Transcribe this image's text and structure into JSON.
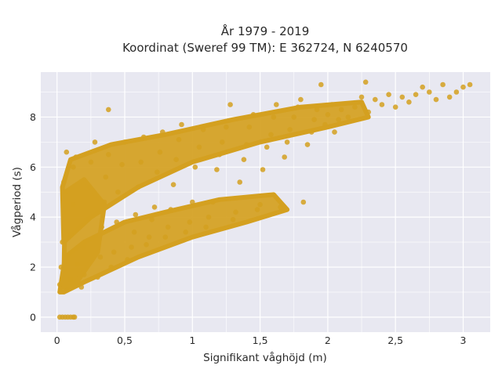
{
  "chart_data": {
    "type": "scatter",
    "title_lines": [
      "År 1979 - 2019",
      "Koordinat (Sweref 99 TM): E 362724, N 6240570"
    ],
    "xlabel": "Signifikant våghöjd (m)",
    "ylabel": "Vågperiod (s)",
    "xlim": [
      -0.12,
      3.2
    ],
    "ylim": [
      -0.6,
      9.8
    ],
    "x_ticks": [
      {
        "value": 0,
        "label": "0"
      },
      {
        "value": 0.5,
        "label": "0,5"
      },
      {
        "value": 1,
        "label": "1"
      },
      {
        "value": 1.5,
        "label": "1,5"
      },
      {
        "value": 2,
        "label": "2"
      },
      {
        "value": 2.5,
        "label": "2,5"
      },
      {
        "value": 3,
        "label": "3"
      }
    ],
    "y_ticks": [
      {
        "value": 0,
        "label": "0"
      },
      {
        "value": 2,
        "label": "2"
      },
      {
        "value": 4,
        "label": "4"
      },
      {
        "value": 6,
        "label": "6"
      },
      {
        "value": 8,
        "label": "8"
      }
    ],
    "grid": true,
    "legend": "none",
    "colors": {
      "marker": "#d4a020",
      "plot_background": "#e8e8f1",
      "grid": "#ffffff"
    },
    "points": [
      [
        0.02,
        0.0
      ],
      [
        0.04,
        0.0
      ],
      [
        0.06,
        0.0
      ],
      [
        0.08,
        0.0
      ],
      [
        0.1,
        0.0
      ],
      [
        0.12,
        0.0
      ],
      [
        0.13,
        0.0
      ],
      [
        0.02,
        1.3
      ],
      [
        0.03,
        2.0
      ],
      [
        0.04,
        3.0
      ],
      [
        0.05,
        4.2
      ],
      [
        0.05,
        5.4
      ],
      [
        0.07,
        6.6
      ],
      [
        0.06,
        5.0
      ],
      [
        0.08,
        1.1
      ],
      [
        0.1,
        1.5
      ],
      [
        0.1,
        3.3
      ],
      [
        0.12,
        4.5
      ],
      [
        0.12,
        6.0
      ],
      [
        0.14,
        6.4
      ],
      [
        0.15,
        2.1
      ],
      [
        0.18,
        1.2
      ],
      [
        0.2,
        1.7
      ],
      [
        0.2,
        2.8
      ],
      [
        0.22,
        3.9
      ],
      [
        0.24,
        5.2
      ],
      [
        0.25,
        6.2
      ],
      [
        0.28,
        7.0
      ],
      [
        0.3,
        1.6
      ],
      [
        0.32,
        2.4
      ],
      [
        0.33,
        3.6
      ],
      [
        0.35,
        4.6
      ],
      [
        0.36,
        5.6
      ],
      [
        0.38,
        6.5
      ],
      [
        0.38,
        8.3
      ],
      [
        0.4,
        2.0
      ],
      [
        0.42,
        2.6
      ],
      [
        0.44,
        3.8
      ],
      [
        0.45,
        5.0
      ],
      [
        0.48,
        6.1
      ],
      [
        0.5,
        7.0
      ],
      [
        0.52,
        2.3
      ],
      [
        0.55,
        2.8
      ],
      [
        0.57,
        3.4
      ],
      [
        0.58,
        4.1
      ],
      [
        0.6,
        5.2
      ],
      [
        0.62,
        6.2
      ],
      [
        0.64,
        7.2
      ],
      [
        0.66,
        2.9
      ],
      [
        0.68,
        3.2
      ],
      [
        0.7,
        3.9
      ],
      [
        0.72,
        4.4
      ],
      [
        0.74,
        5.8
      ],
      [
        0.76,
        6.6
      ],
      [
        0.78,
        7.4
      ],
      [
        0.8,
        3.2
      ],
      [
        0.82,
        3.6
      ],
      [
        0.84,
        4.3
      ],
      [
        0.86,
        5.3
      ],
      [
        0.88,
        6.3
      ],
      [
        0.9,
        7.1
      ],
      [
        0.92,
        7.7
      ],
      [
        0.95,
        3.4
      ],
      [
        0.98,
        3.8
      ],
      [
        1.0,
        4.6
      ],
      [
        1.02,
        6.0
      ],
      [
        1.05,
        6.8
      ],
      [
        1.08,
        7.5
      ],
      [
        1.1,
        3.6
      ],
      [
        1.12,
        4.0
      ],
      [
        1.15,
        4.6
      ],
      [
        1.18,
        5.9
      ],
      [
        1.2,
        6.5
      ],
      [
        1.22,
        7.0
      ],
      [
        1.25,
        7.6
      ],
      [
        1.28,
        8.5
      ],
      [
        1.3,
        3.9
      ],
      [
        1.32,
        4.2
      ],
      [
        1.35,
        5.4
      ],
      [
        1.38,
        6.3
      ],
      [
        1.4,
        6.9
      ],
      [
        1.42,
        7.6
      ],
      [
        1.45,
        8.1
      ],
      [
        1.48,
        4.3
      ],
      [
        1.5,
        4.5
      ],
      [
        1.52,
        5.9
      ],
      [
        1.55,
        6.8
      ],
      [
        1.58,
        7.3
      ],
      [
        1.6,
        8.0
      ],
      [
        1.62,
        8.5
      ],
      [
        1.65,
        4.4
      ],
      [
        1.68,
        6.4
      ],
      [
        1.7,
        7.0
      ],
      [
        1.72,
        7.5
      ],
      [
        1.75,
        8.0
      ],
      [
        1.78,
        8.4
      ],
      [
        1.8,
        8.7
      ],
      [
        1.82,
        4.6
      ],
      [
        1.85,
        6.9
      ],
      [
        1.88,
        7.4
      ],
      [
        1.9,
        7.9
      ],
      [
        1.92,
        8.3
      ],
      [
        1.95,
        9.3
      ],
      [
        1.98,
        7.7
      ],
      [
        2.0,
        8.1
      ],
      [
        2.03,
        8.5
      ],
      [
        2.05,
        7.4
      ],
      [
        2.08,
        7.9
      ],
      [
        2.1,
        8.3
      ],
      [
        2.15,
        8.0
      ],
      [
        2.2,
        8.4
      ],
      [
        2.25,
        8.8
      ],
      [
        2.28,
        9.4
      ],
      [
        2.3,
        8.2
      ],
      [
        2.35,
        8.7
      ],
      [
        2.4,
        8.5
      ],
      [
        2.45,
        8.9
      ],
      [
        2.5,
        8.4
      ],
      [
        2.55,
        8.8
      ],
      [
        2.6,
        8.6
      ],
      [
        2.65,
        8.9
      ],
      [
        2.7,
        9.2
      ],
      [
        2.75,
        9.0
      ],
      [
        2.8,
        8.7
      ],
      [
        2.85,
        9.3
      ],
      [
        2.9,
        8.8
      ],
      [
        2.95,
        9.0
      ],
      [
        3.0,
        9.2
      ],
      [
        3.05,
        9.3
      ]
    ]
  }
}
